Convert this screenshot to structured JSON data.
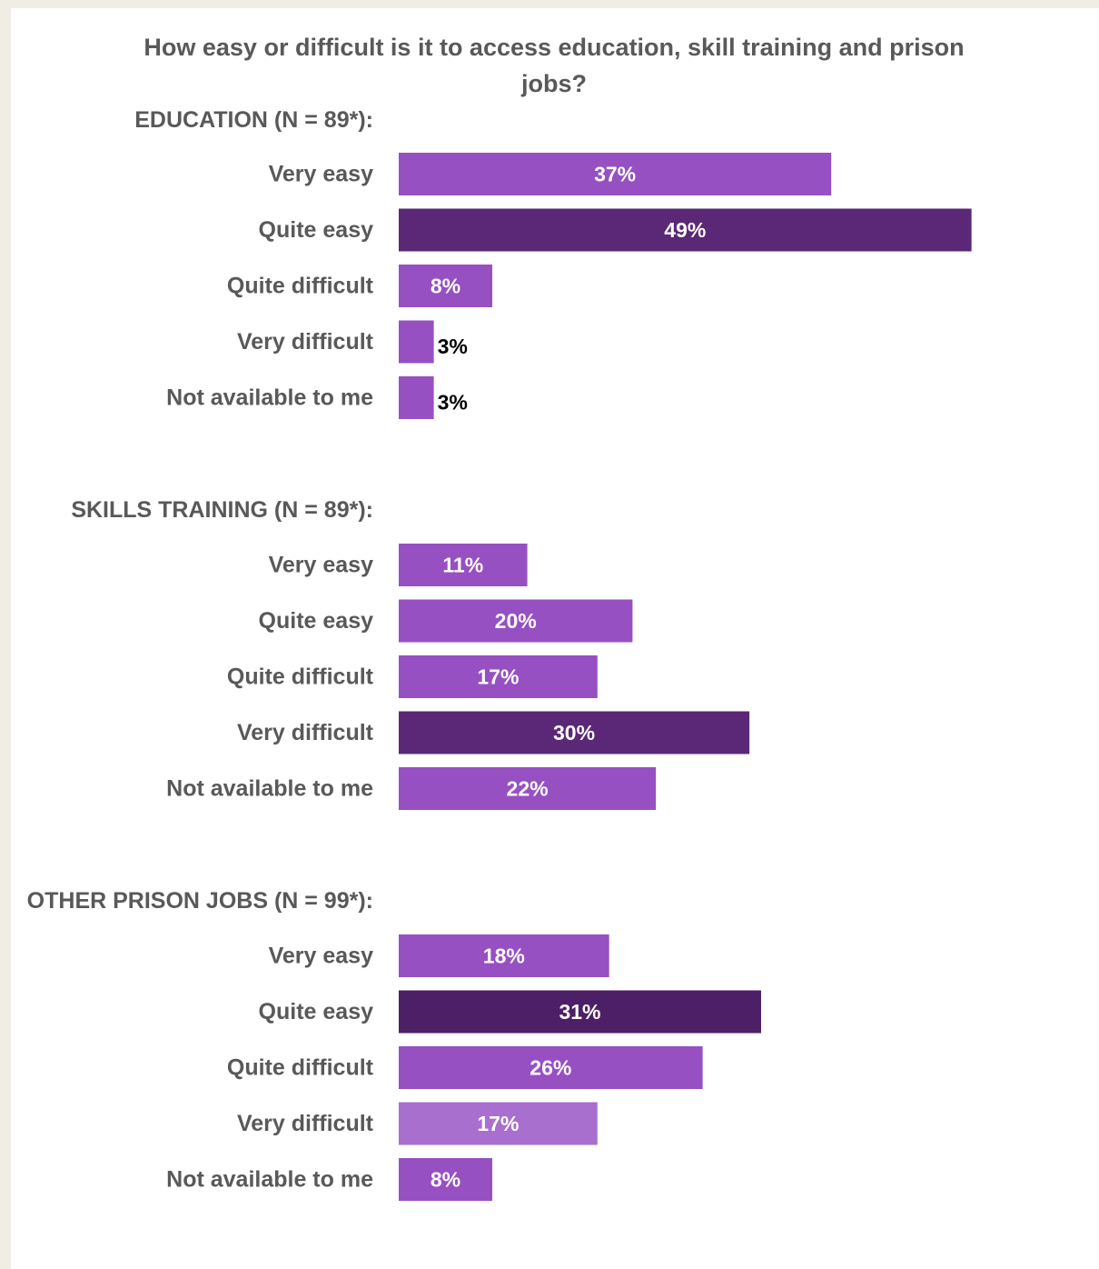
{
  "chart_data": {
    "type": "bar",
    "orientation": "horizontal",
    "title": "How easy or difficult is it to access education, skill training and prison jobs?",
    "unit": "%",
    "colors": {
      "default": "#9750c2",
      "highlight": "#5a2876",
      "highlight_alt": "#4c1f66",
      "light": "#a96fcf",
      "label_text": "#595959"
    },
    "groups": [
      {
        "title": "EDUCATION (N = 89*):",
        "categories": [
          "Very easy",
          "Quite easy",
          "Quite difficult",
          "Very difficult",
          "Not available to me"
        ],
        "values": [
          37,
          49,
          8,
          3,
          3
        ],
        "labels": [
          "37%",
          "49%",
          "8%",
          "3%",
          "3%"
        ],
        "highlight_index": 1
      },
      {
        "title": "SKILLS TRAINING (N = 89*):",
        "categories": [
          "Very easy",
          "Quite easy",
          "Quite difficult",
          "Very difficult",
          "Not available to me"
        ],
        "values": [
          11,
          20,
          17,
          30,
          22
        ],
        "labels": [
          "11%",
          "20%",
          "17%",
          "30%",
          "22%"
        ],
        "highlight_index": 3
      },
      {
        "title": "OTHER PRISON JOBS (N = 99*):",
        "categories": [
          "Very easy",
          "Quite easy",
          "Quite difficult",
          "Very difficult",
          "Not available to me"
        ],
        "values": [
          18,
          31,
          26,
          17,
          8
        ],
        "labels": [
          "18%",
          "31%",
          "26%",
          "17%",
          "8%"
        ],
        "highlight_index": 1,
        "light_index": 3
      }
    ]
  }
}
